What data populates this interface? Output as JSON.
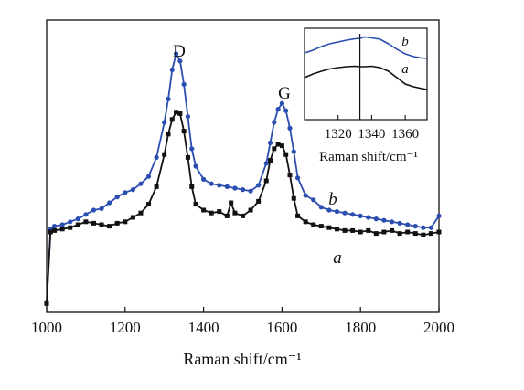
{
  "chart_data": {
    "type": "line",
    "xlabel": "Raman shift/cm⁻¹",
    "ylabel": "",
    "xlim": [
      1000,
      2000
    ],
    "ylim": [
      0,
      10
    ],
    "xticks": [
      1000,
      1200,
      1400,
      1600,
      1800,
      2000
    ],
    "grid": false,
    "annotations": [
      {
        "text": "D",
        "x": 1332,
        "y": 9.55
      },
      {
        "text": "G",
        "x": 1595,
        "y": 8.1
      }
    ],
    "series": [
      {
        "name": "b",
        "color": "#2a4db0",
        "marker": "circle",
        "x": [
          1000,
          1010,
          1020,
          1040,
          1060,
          1080,
          1100,
          1120,
          1140,
          1160,
          1180,
          1200,
          1220,
          1240,
          1260,
          1280,
          1300,
          1310,
          1320,
          1330,
          1340,
          1350,
          1360,
          1370,
          1380,
          1400,
          1420,
          1440,
          1460,
          1480,
          1500,
          1520,
          1540,
          1560,
          1570,
          1580,
          1590,
          1600,
          1610,
          1620,
          1630,
          1640,
          1660,
          1680,
          1700,
          1720,
          1740,
          1760,
          1780,
          1800,
          1820,
          1840,
          1860,
          1880,
          1900,
          1920,
          1940,
          1960,
          1980,
          2000
        ],
        "y": [
          0.3,
          2.85,
          2.95,
          3.0,
          3.1,
          3.2,
          3.35,
          3.5,
          3.55,
          3.75,
          3.95,
          4.1,
          4.2,
          4.4,
          4.65,
          5.3,
          6.5,
          7.3,
          8.3,
          8.85,
          8.6,
          7.8,
          6.7,
          5.6,
          5.0,
          4.55,
          4.4,
          4.35,
          4.3,
          4.25,
          4.2,
          4.15,
          4.35,
          5.1,
          5.8,
          6.5,
          6.95,
          7.15,
          6.9,
          6.3,
          5.5,
          4.6,
          4.0,
          3.85,
          3.6,
          3.5,
          3.45,
          3.4,
          3.35,
          3.3,
          3.25,
          3.2,
          3.15,
          3.1,
          3.05,
          3.0,
          2.95,
          2.9,
          2.9,
          3.3
        ]
      },
      {
        "name": "a",
        "color": "#111111",
        "marker": "square",
        "x": [
          1000,
          1010,
          1020,
          1040,
          1060,
          1080,
          1100,
          1120,
          1140,
          1160,
          1180,
          1200,
          1220,
          1240,
          1260,
          1280,
          1300,
          1310,
          1320,
          1330,
          1340,
          1350,
          1360,
          1370,
          1380,
          1400,
          1420,
          1440,
          1460,
          1470,
          1480,
          1500,
          1520,
          1540,
          1560,
          1570,
          1580,
          1590,
          1600,
          1610,
          1620,
          1630,
          1640,
          1660,
          1680,
          1700,
          1720,
          1740,
          1760,
          1780,
          1800,
          1820,
          1840,
          1860,
          1880,
          1900,
          1920,
          1940,
          1960,
          1980,
          2000
        ],
        "y": [
          0.3,
          2.75,
          2.8,
          2.85,
          2.9,
          3.0,
          3.1,
          3.05,
          3.0,
          2.95,
          3.05,
          3.1,
          3.25,
          3.4,
          3.7,
          4.3,
          5.4,
          6.1,
          6.6,
          6.85,
          6.8,
          6.2,
          5.3,
          4.3,
          3.7,
          3.5,
          3.4,
          3.45,
          3.3,
          3.75,
          3.4,
          3.3,
          3.5,
          3.8,
          4.5,
          5.2,
          5.6,
          5.75,
          5.7,
          5.4,
          4.7,
          3.9,
          3.3,
          3.1,
          3.0,
          2.95,
          2.9,
          2.85,
          2.8,
          2.8,
          2.75,
          2.8,
          2.7,
          2.75,
          2.8,
          2.7,
          2.75,
          2.7,
          2.65,
          2.7,
          2.75
        ]
      }
    ],
    "inset": {
      "xlabel": "Raman shift/cm⁻¹",
      "xlim": [
        1300,
        1373
      ],
      "ylim": [
        0,
        10
      ],
      "xticks": [
        1320,
        1340,
        1360
      ],
      "vertical_line_x": 1333,
      "series": [
        {
          "name": "b",
          "color": "#2a4db0",
          "x": [
            1300,
            1305,
            1310,
            1315,
            1320,
            1325,
            1330,
            1333,
            1336,
            1340,
            1345,
            1350,
            1355,
            1360,
            1365,
            1370,
            1373
          ],
          "y": [
            7.3,
            7.6,
            8.0,
            8.3,
            8.5,
            8.7,
            8.85,
            8.9,
            9.05,
            8.95,
            8.8,
            8.3,
            7.7,
            7.2,
            6.9,
            6.75,
            6.7
          ]
        },
        {
          "name": "a",
          "color": "#111111",
          "x": [
            1300,
            1305,
            1310,
            1315,
            1320,
            1325,
            1330,
            1333,
            1336,
            1340,
            1345,
            1350,
            1355,
            1360,
            1365,
            1370,
            1373
          ],
          "y": [
            4.6,
            5.0,
            5.3,
            5.55,
            5.7,
            5.8,
            5.85,
            5.8,
            5.8,
            5.85,
            5.7,
            5.3,
            4.6,
            3.9,
            3.6,
            3.4,
            3.3
          ]
        }
      ]
    }
  }
}
